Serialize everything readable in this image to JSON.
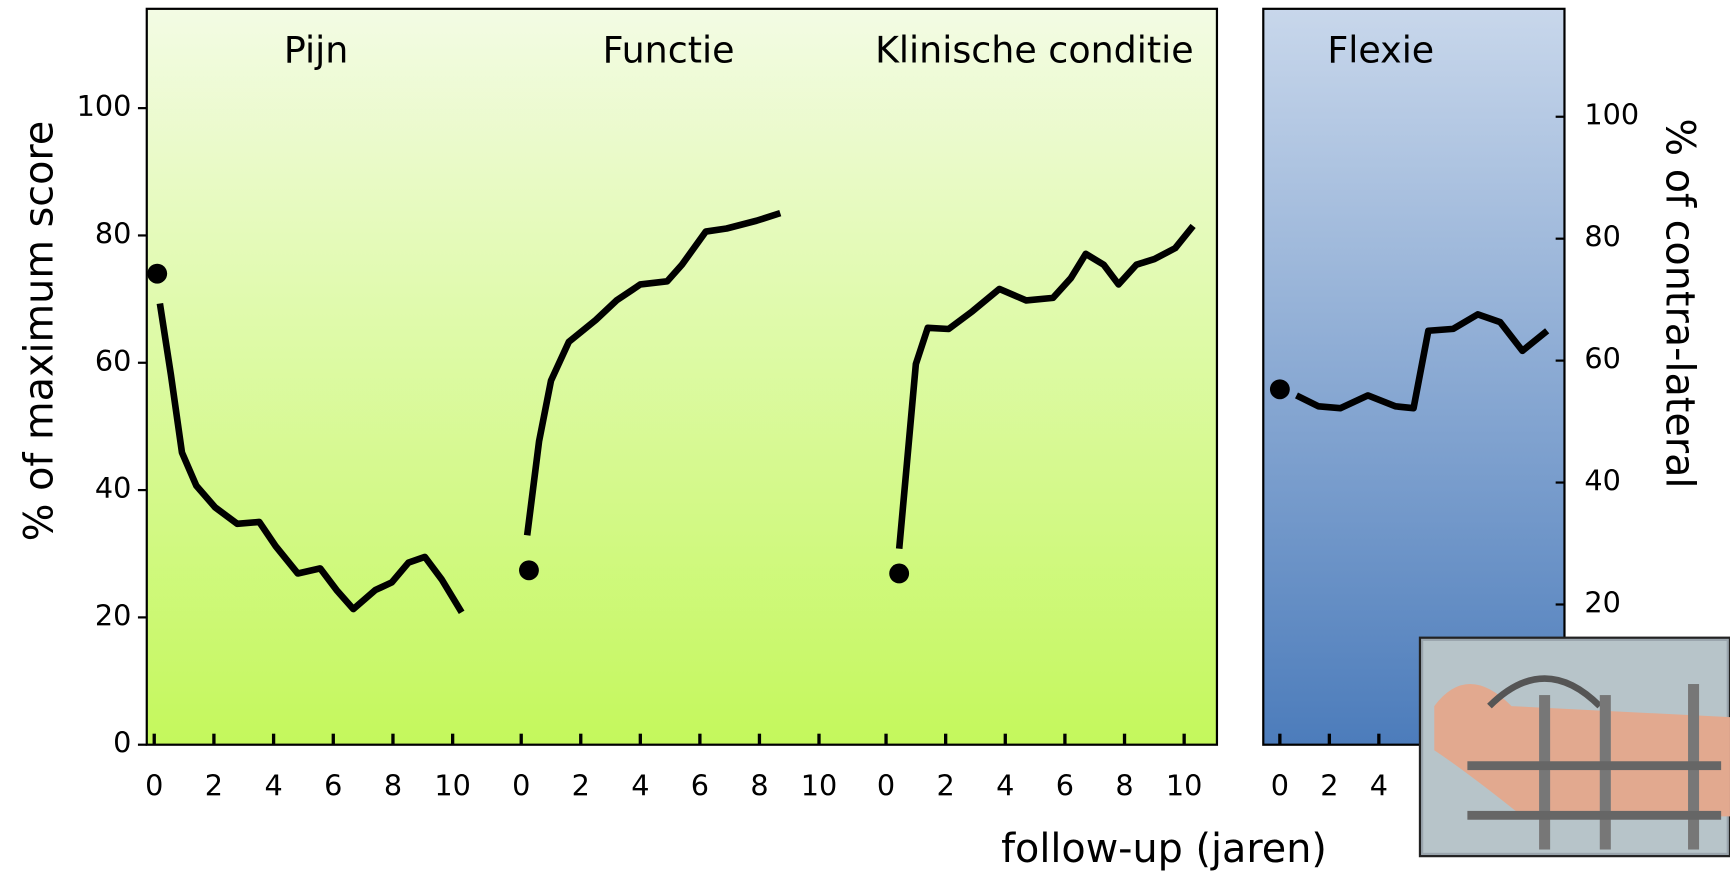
{
  "chart_data": [
    {
      "type": "line",
      "title": "Pijn",
      "ylabel": "% of maximum score",
      "color": "#000000",
      "xlim": [
        -0.25,
        11.1
      ],
      "ylim": [
        0,
        115.6
      ],
      "xticks": [
        0,
        2,
        4,
        6,
        8,
        10
      ],
      "yticks": [
        0,
        20,
        40,
        60,
        80,
        100
      ],
      "start": {
        "x": 0.1,
        "value": 74
      },
      "x": [
        0.19,
        0.56,
        0.93,
        1.41,
        2.04,
        2.78,
        3.52,
        4.07,
        4.81,
        5.56,
        6.11,
        6.67,
        7.41,
        7.96,
        8.52,
        9.07,
        9.63,
        10.3
      ],
      "values": [
        69.3,
        58.1,
        45.9,
        40.7,
        37.3,
        34.7,
        35.0,
        31.2,
        26.9,
        27.7,
        24.3,
        21.3,
        24.3,
        25.5,
        28.6,
        29.5,
        26.0,
        20.8
      ]
    },
    {
      "type": "line",
      "title": "Functie",
      "color": "#000000",
      "xlim": [
        -1.2,
        11.1
      ],
      "ylim": [
        0,
        115.6
      ],
      "xticks": [
        0,
        2,
        4,
        6,
        8,
        10
      ],
      "start": {
        "x": 0.26,
        "value": 27.4
      },
      "x": [
        0.2,
        0.6,
        1.0,
        1.6,
        2.5,
        3.2,
        4.0,
        4.9,
        5.4,
        6.2,
        6.9,
        7.9,
        8.7
      ],
      "values": [
        32.9,
        47.7,
        57.2,
        63.3,
        66.7,
        69.8,
        72.3,
        72.8,
        75.4,
        80.6,
        81.1,
        82.3,
        83.5
      ]
    },
    {
      "type": "line",
      "title": "Klinische conditie",
      "xlabel": "follow-up (jaren)",
      "color": "#000000",
      "xlim": [
        -1.15,
        11.1
      ],
      "ylim": [
        0,
        115.6
      ],
      "xticks": [
        0,
        2,
        4,
        6,
        8,
        10
      ],
      "start": {
        "x": 0.44,
        "value": 26.9
      },
      "x": [
        0.44,
        0.7,
        1.0,
        1.4,
        2.1,
        2.9,
        3.8,
        4.7,
        5.6,
        6.2,
        6.7,
        7.3,
        7.8,
        8.4,
        9.0,
        9.7,
        10.3
      ],
      "values": [
        30.8,
        44.2,
        59.8,
        65.5,
        65.3,
        68.1,
        71.6,
        69.8,
        70.2,
        73.3,
        77.1,
        75.4,
        72.3,
        75.4,
        76.3,
        78.0,
        81.5
      ]
    },
    {
      "type": "line",
      "title": "Flexie",
      "y2label": "% of contra-lateral",
      "color": "#000000",
      "xlim": [
        -0.67,
        11.5
      ],
      "y2lim": [
        -3,
        117.7
      ],
      "xticks": [
        0,
        2,
        4
      ],
      "y2ticks": [
        20,
        40,
        60,
        80,
        100
      ],
      "start": {
        "x": 0,
        "value": 55.3
      },
      "x": [
        0.67,
        1.56,
        2.44,
        3.56,
        4.67,
        5.4,
        6.0,
        7.0,
        8.0,
        8.9,
        9.8,
        10.8
      ],
      "values": [
        54.3,
        52.5,
        52.2,
        54.3,
        52.5,
        52.2,
        64.9,
        65.2,
        67.6,
        66.3,
        61.6,
        64.9
      ]
    }
  ]
}
